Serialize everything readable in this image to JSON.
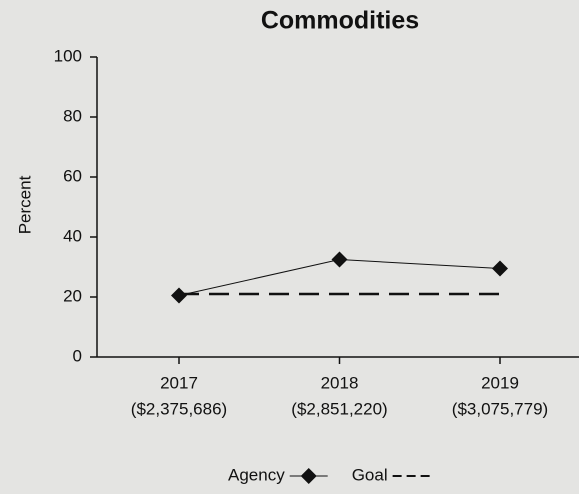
{
  "chart_data": {
    "type": "line",
    "title": "Commodities",
    "y_label": "Percent",
    "categories": [
      "2017",
      "2018",
      "2019"
    ],
    "category_amounts": [
      "($2,375,686)",
      "($2,851,220)",
      "($3,075,779)"
    ],
    "series": [
      {
        "name": "Agency",
        "color": "#111111",
        "style": "solid",
        "marker": "diamond",
        "values": [
          20.5,
          32.5,
          29.5
        ]
      },
      {
        "name": "Goal",
        "color": "#111111",
        "style": "dashed",
        "values": [
          21,
          21,
          21
        ]
      }
    ],
    "ylim": [
      0,
      100
    ],
    "yticks": [
      0,
      20,
      40,
      60,
      80,
      100
    ],
    "grid": false
  }
}
